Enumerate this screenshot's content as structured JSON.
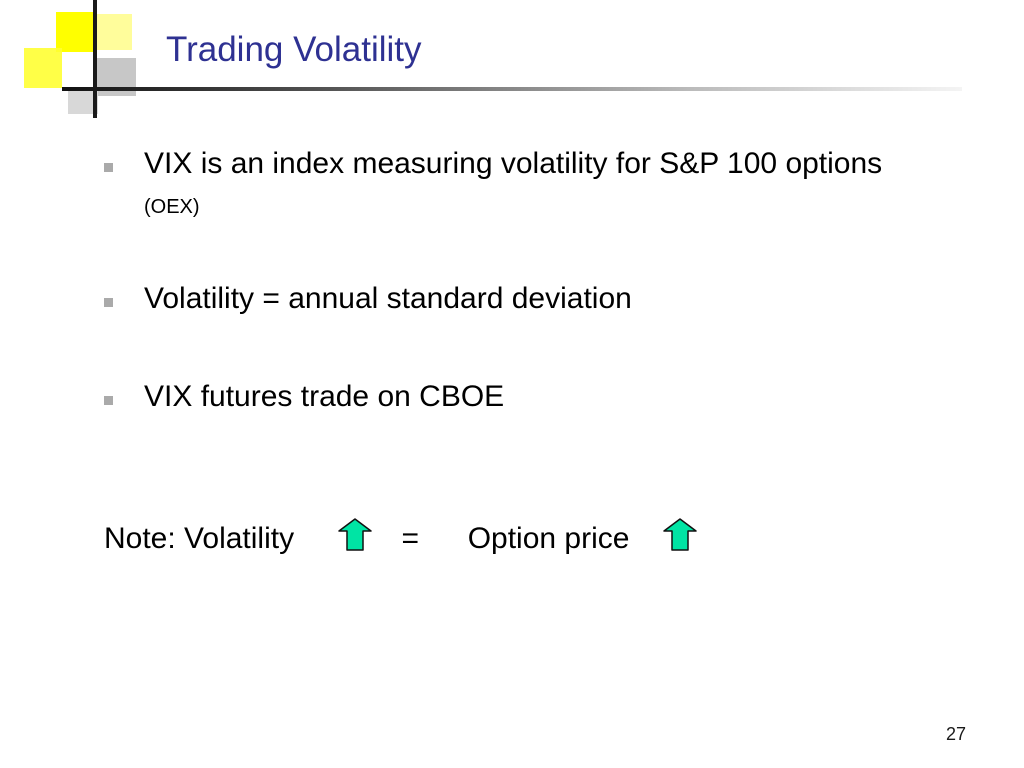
{
  "slide": {
    "title": "Trading Volatility",
    "bullets": [
      {
        "text": "VIX is an index measuring volatility for S&P 100 options",
        "note": "(OEX)"
      },
      {
        "text": "Volatility = annual standard deviation"
      },
      {
        "text": "VIX futures trade on CBOE"
      }
    ],
    "note_line": {
      "label": "Note: Volatility",
      "equals": "=",
      "result": "Option price",
      "arrow_icon": "up-arrow-icon",
      "arrow_fill": "#00e4a4",
      "arrow_stroke": "#111111"
    },
    "page_number": "27"
  },
  "colors": {
    "title": "#2e3192",
    "accent_yellow": "#ffff00",
    "accent_grey": "#c7c7c7",
    "bullet_marker": "#aaaaaa"
  }
}
